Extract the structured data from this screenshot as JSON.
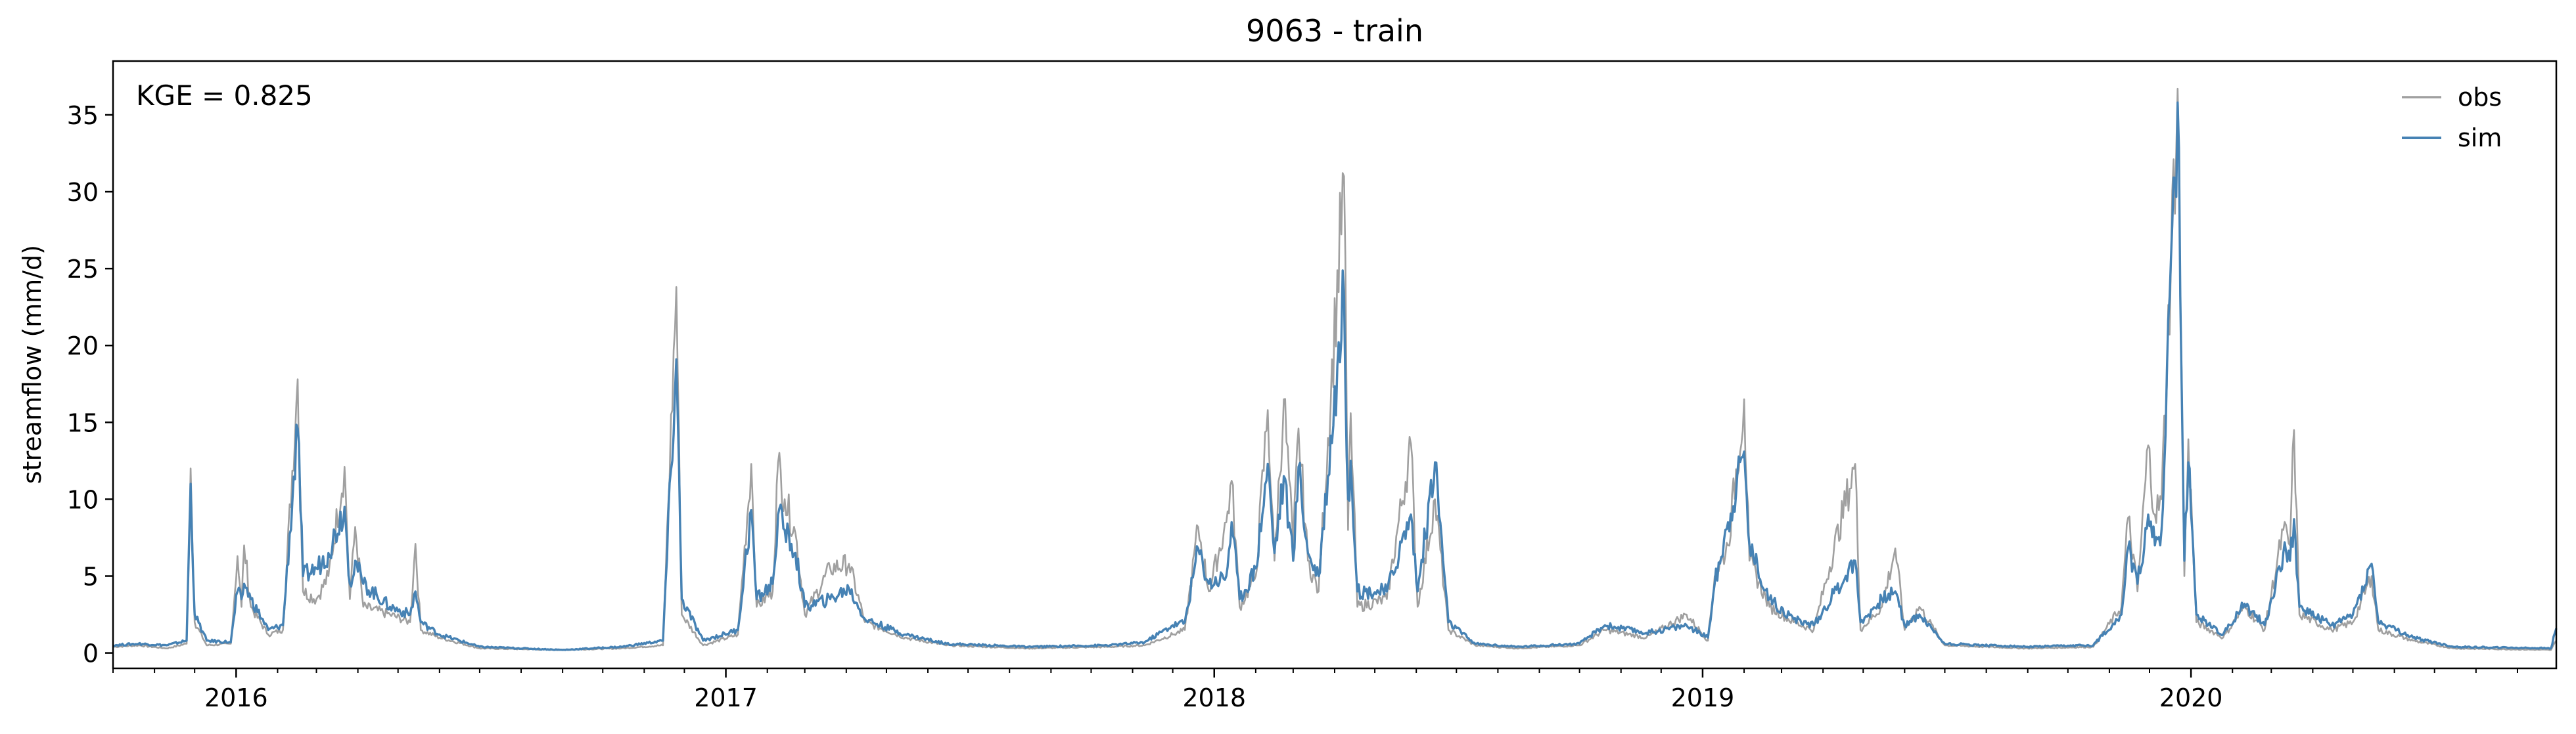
{
  "chart_data": {
    "type": "line",
    "title": "9063 - train",
    "xlabel": "",
    "ylabel": "streamflow (mm/d)",
    "annotation": "KGE = 0.825",
    "xlim": [
      "2015-10-01",
      "2020-09-30"
    ],
    "ylim": [
      -1.0,
      38.5
    ],
    "x_tick_labels": [
      "2016",
      "2017",
      "2018",
      "2019",
      "2020"
    ],
    "x_ticks": [
      "2016-01-01",
      "2017-01-01",
      "2018-01-01",
      "2019-01-01",
      "2020-01-01"
    ],
    "y_ticks": [
      0,
      5,
      10,
      15,
      20,
      25,
      30,
      35
    ],
    "y_tick_labels": [
      "0",
      "5",
      "10",
      "15",
      "20",
      "25",
      "30",
      "35"
    ],
    "grid": false,
    "legend_position": "top-right",
    "series": [
      {
        "name": "obs",
        "color": "#a0a0a0",
        "points": [
          [
            "2015-10-01",
            0.4
          ],
          [
            "2015-10-20",
            0.5
          ],
          [
            "2015-11-10",
            0.3
          ],
          [
            "2015-11-25",
            0.6
          ],
          [
            "2015-11-28",
            12.0
          ],
          [
            "2015-12-01",
            2.0
          ],
          [
            "2015-12-10",
            0.5
          ],
          [
            "2015-12-28",
            0.6
          ],
          [
            "2016-01-02",
            6.3
          ],
          [
            "2016-01-05",
            3.0
          ],
          [
            "2016-01-07",
            7.0
          ],
          [
            "2016-01-12",
            3.0
          ],
          [
            "2016-01-25",
            1.2
          ],
          [
            "2016-02-05",
            1.5
          ],
          [
            "2016-02-16",
            17.8
          ],
          [
            "2016-02-20",
            4.0
          ],
          [
            "2016-03-01",
            3.5
          ],
          [
            "2016-03-10",
            5.0
          ],
          [
            "2016-03-22",
            12.1
          ],
          [
            "2016-03-26",
            3.5
          ],
          [
            "2016-03-30",
            8.2
          ],
          [
            "2016-04-05",
            3.0
          ],
          [
            "2016-04-25",
            2.5
          ],
          [
            "2016-05-10",
            2.0
          ],
          [
            "2016-05-14",
            7.1
          ],
          [
            "2016-05-18",
            1.5
          ],
          [
            "2016-06-01",
            1.0
          ],
          [
            "2016-07-01",
            0.3
          ],
          [
            "2016-09-01",
            0.2
          ],
          [
            "2016-10-15",
            0.3
          ],
          [
            "2016-11-15",
            0.5
          ],
          [
            "2016-11-25",
            23.8
          ],
          [
            "2016-11-29",
            2.5
          ],
          [
            "2016-12-15",
            0.5
          ],
          [
            "2017-01-10",
            1.2
          ],
          [
            "2017-01-20",
            12.3
          ],
          [
            "2017-01-24",
            3.0
          ],
          [
            "2017-02-05",
            4.0
          ],
          [
            "2017-02-09",
            12.4
          ],
          [
            "2017-02-14",
            10.0
          ],
          [
            "2017-02-22",
            7.8
          ],
          [
            "2017-03-01",
            2.5
          ],
          [
            "2017-03-20",
            5.5
          ],
          [
            "2017-04-03",
            5.8
          ],
          [
            "2017-04-15",
            2.0
          ],
          [
            "2017-05-15",
            1.0
          ],
          [
            "2017-06-15",
            0.5
          ],
          [
            "2017-08-15",
            0.3
          ],
          [
            "2017-10-15",
            0.4
          ],
          [
            "2017-11-10",
            0.5
          ],
          [
            "2017-12-01",
            1.2
          ],
          [
            "2017-12-10",
            1.5
          ],
          [
            "2017-12-20",
            8.2
          ],
          [
            "2017-12-28",
            4.0
          ],
          [
            "2018-01-10",
            8.5
          ],
          [
            "2018-01-14",
            11.2
          ],
          [
            "2018-01-20",
            3.0
          ],
          [
            "2018-02-01",
            5.0
          ],
          [
            "2018-02-10",
            15.8
          ],
          [
            "2018-02-15",
            6.0
          ],
          [
            "2018-02-22",
            16.5
          ],
          [
            "2018-03-01",
            7.0
          ],
          [
            "2018-03-05",
            14.6
          ],
          [
            "2018-03-12",
            6.0
          ],
          [
            "2018-03-20",
            4.0
          ],
          [
            "2018-04-08",
            31.0
          ],
          [
            "2018-04-11",
            8.0
          ],
          [
            "2018-04-13",
            15.6
          ],
          [
            "2018-04-18",
            3.0
          ],
          [
            "2018-05-10",
            3.5
          ],
          [
            "2018-05-28",
            13.6
          ],
          [
            "2018-06-02",
            3.0
          ],
          [
            "2018-06-15",
            10.0
          ],
          [
            "2018-06-25",
            1.5
          ],
          [
            "2018-07-15",
            0.5
          ],
          [
            "2018-08-15",
            0.3
          ],
          [
            "2018-10-01",
            0.5
          ],
          [
            "2018-10-20",
            1.5
          ],
          [
            "2018-11-20",
            1.0
          ],
          [
            "2018-12-20",
            2.5
          ],
          [
            "2019-01-05",
            0.8
          ],
          [
            "2019-01-10",
            5.0
          ],
          [
            "2019-01-20",
            7.0
          ],
          [
            "2019-02-01",
            16.5
          ],
          [
            "2019-02-05",
            6.0
          ],
          [
            "2019-02-20",
            3.0
          ],
          [
            "2019-03-10",
            2.0
          ],
          [
            "2019-03-25",
            1.5
          ],
          [
            "2019-04-25",
            12.3
          ],
          [
            "2019-04-29",
            1.5
          ],
          [
            "2019-05-15",
            3.0
          ],
          [
            "2019-05-25",
            6.8
          ],
          [
            "2019-06-01",
            1.5
          ],
          [
            "2019-06-12",
            3.0
          ],
          [
            "2019-07-01",
            0.5
          ],
          [
            "2019-09-01",
            0.3
          ],
          [
            "2019-10-20",
            0.4
          ],
          [
            "2019-11-10",
            3.0
          ],
          [
            "2019-11-15",
            8.8
          ],
          [
            "2019-11-22",
            4.0
          ],
          [
            "2019-11-30",
            13.5
          ],
          [
            "2019-12-05",
            9.0
          ],
          [
            "2019-12-10",
            10.0
          ],
          [
            "2019-12-22",
            36.7
          ],
          [
            "2019-12-27",
            5.0
          ],
          [
            "2019-12-30",
            13.9
          ],
          [
            "2020-01-05",
            2.0
          ],
          [
            "2020-01-25",
            1.0
          ],
          [
            "2020-02-10",
            3.0
          ],
          [
            "2020-02-25",
            1.5
          ],
          [
            "2020-03-10",
            8.0
          ],
          [
            "2020-03-15",
            7.0
          ],
          [
            "2020-03-18",
            14.5
          ],
          [
            "2020-03-22",
            2.5
          ],
          [
            "2020-04-15",
            1.5
          ],
          [
            "2020-05-01",
            2.0
          ],
          [
            "2020-05-15",
            5.0
          ],
          [
            "2020-05-20",
            1.5
          ],
          [
            "2020-06-15",
            0.8
          ],
          [
            "2020-07-15",
            0.3
          ],
          [
            "2020-09-26",
            0.2
          ],
          [
            "2020-09-30",
            0.8
          ]
        ]
      },
      {
        "name": "sim",
        "color": "#4682b4",
        "points": [
          [
            "2015-10-01",
            0.5
          ],
          [
            "2015-10-20",
            0.6
          ],
          [
            "2015-11-10",
            0.5
          ],
          [
            "2015-11-25",
            0.8
          ],
          [
            "2015-11-28",
            11.0
          ],
          [
            "2015-12-01",
            2.5
          ],
          [
            "2015-12-10",
            0.8
          ],
          [
            "2015-12-28",
            0.7
          ],
          [
            "2016-01-02",
            4.0
          ],
          [
            "2016-01-05",
            3.5
          ],
          [
            "2016-01-07",
            4.5
          ],
          [
            "2016-01-12",
            3.5
          ],
          [
            "2016-01-25",
            1.5
          ],
          [
            "2016-02-05",
            1.8
          ],
          [
            "2016-02-16",
            14.6
          ],
          [
            "2016-02-20",
            5.0
          ],
          [
            "2016-03-01",
            5.5
          ],
          [
            "2016-03-10",
            6.5
          ],
          [
            "2016-03-22",
            9.5
          ],
          [
            "2016-03-26",
            4.5
          ],
          [
            "2016-03-30",
            6.0
          ],
          [
            "2016-04-05",
            4.5
          ],
          [
            "2016-04-25",
            3.0
          ],
          [
            "2016-05-10",
            2.5
          ],
          [
            "2016-05-14",
            4.0
          ],
          [
            "2016-05-18",
            2.0
          ],
          [
            "2016-06-01",
            1.2
          ],
          [
            "2016-07-01",
            0.4
          ],
          [
            "2016-09-01",
            0.2
          ],
          [
            "2016-10-15",
            0.4
          ],
          [
            "2016-11-15",
            0.8
          ],
          [
            "2016-11-25",
            19.1
          ],
          [
            "2016-11-29",
            3.5
          ],
          [
            "2016-12-15",
            0.8
          ],
          [
            "2017-01-10",
            1.5
          ],
          [
            "2017-01-20",
            9.3
          ],
          [
            "2017-01-24",
            3.5
          ],
          [
            "2017-02-05",
            4.5
          ],
          [
            "2017-02-09",
            9.0
          ],
          [
            "2017-02-14",
            8.0
          ],
          [
            "2017-02-22",
            6.5
          ],
          [
            "2017-03-01",
            3.0
          ],
          [
            "2017-03-20",
            3.5
          ],
          [
            "2017-04-03",
            4.2
          ],
          [
            "2017-04-15",
            2.2
          ],
          [
            "2017-05-15",
            1.2
          ],
          [
            "2017-06-15",
            0.6
          ],
          [
            "2017-08-15",
            0.4
          ],
          [
            "2017-10-15",
            0.5
          ],
          [
            "2017-11-10",
            0.7
          ],
          [
            "2017-12-01",
            1.8
          ],
          [
            "2017-12-10",
            2.0
          ],
          [
            "2017-12-20",
            6.8
          ],
          [
            "2017-12-28",
            4.5
          ],
          [
            "2018-01-10",
            5.0
          ],
          [
            "2018-01-14",
            8.5
          ],
          [
            "2018-01-20",
            3.5
          ],
          [
            "2018-02-01",
            5.5
          ],
          [
            "2018-02-10",
            12.3
          ],
          [
            "2018-02-15",
            6.5
          ],
          [
            "2018-02-22",
            11.5
          ],
          [
            "2018-03-01",
            6.0
          ],
          [
            "2018-03-05",
            12.1
          ],
          [
            "2018-03-12",
            6.5
          ],
          [
            "2018-03-20",
            5.0
          ],
          [
            "2018-04-08",
            23.2
          ],
          [
            "2018-04-11",
            10.0
          ],
          [
            "2018-04-13",
            12.5
          ],
          [
            "2018-04-18",
            4.0
          ],
          [
            "2018-05-10",
            4.0
          ],
          [
            "2018-05-28",
            9.0
          ],
          [
            "2018-06-02",
            4.0
          ],
          [
            "2018-06-15",
            12.4
          ],
          [
            "2018-06-25",
            2.0
          ],
          [
            "2018-07-15",
            0.6
          ],
          [
            "2018-08-15",
            0.4
          ],
          [
            "2018-10-01",
            0.6
          ],
          [
            "2018-10-20",
            1.8
          ],
          [
            "2018-11-20",
            1.3
          ],
          [
            "2018-12-20",
            1.8
          ],
          [
            "2019-01-05",
            1.0
          ],
          [
            "2019-01-10",
            4.5
          ],
          [
            "2019-01-20",
            8.5
          ],
          [
            "2019-02-01",
            13.1
          ],
          [
            "2019-02-05",
            7.0
          ],
          [
            "2019-02-20",
            3.5
          ],
          [
            "2019-03-10",
            2.2
          ],
          [
            "2019-03-25",
            1.8
          ],
          [
            "2019-04-25",
            6.0
          ],
          [
            "2019-04-29",
            2.0
          ],
          [
            "2019-05-15",
            3.5
          ],
          [
            "2019-05-25",
            4.0
          ],
          [
            "2019-06-01",
            1.8
          ],
          [
            "2019-06-12",
            2.5
          ],
          [
            "2019-07-01",
            0.6
          ],
          [
            "2019-09-01",
            0.4
          ],
          [
            "2019-10-20",
            0.5
          ],
          [
            "2019-11-10",
            2.5
          ],
          [
            "2019-11-15",
            6.8
          ],
          [
            "2019-11-22",
            4.5
          ],
          [
            "2019-11-30",
            9.0
          ],
          [
            "2019-12-05",
            7.0
          ],
          [
            "2019-12-10",
            8.0
          ],
          [
            "2019-12-22",
            35.8
          ],
          [
            "2019-12-27",
            6.0
          ],
          [
            "2019-12-30",
            12.4
          ],
          [
            "2020-01-05",
            2.5
          ],
          [
            "2020-01-25",
            1.2
          ],
          [
            "2020-02-10",
            3.2
          ],
          [
            "2020-02-25",
            1.8
          ],
          [
            "2020-03-10",
            6.5
          ],
          [
            "2020-03-15",
            6.0
          ],
          [
            "2020-03-18",
            8.7
          ],
          [
            "2020-03-22",
            3.0
          ],
          [
            "2020-04-15",
            1.8
          ],
          [
            "2020-05-01",
            2.5
          ],
          [
            "2020-05-15",
            5.8
          ],
          [
            "2020-05-20",
            2.0
          ],
          [
            "2020-06-15",
            1.0
          ],
          [
            "2020-07-15",
            0.4
          ],
          [
            "2020-09-26",
            0.3
          ],
          [
            "2020-09-30",
            1.6
          ]
        ]
      }
    ]
  }
}
